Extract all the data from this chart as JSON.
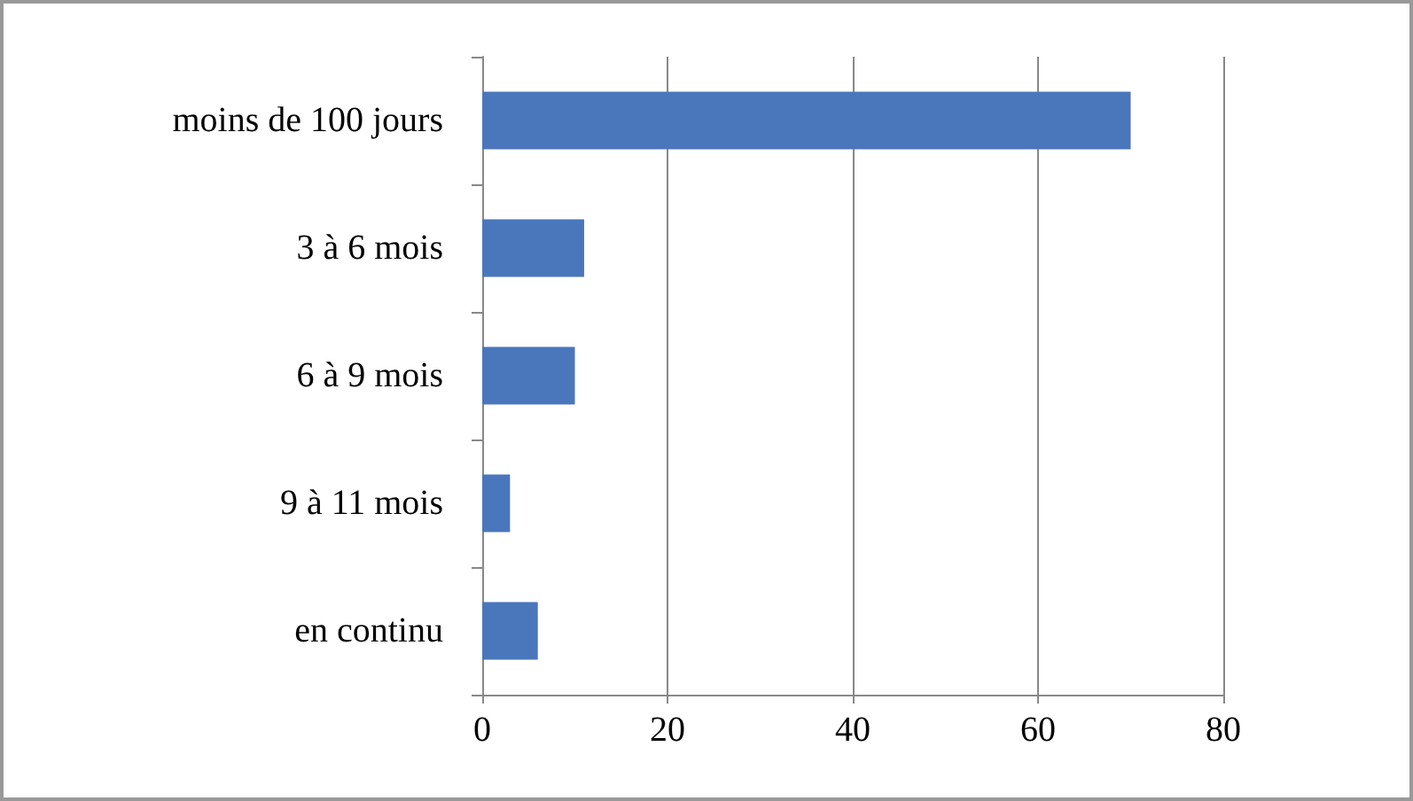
{
  "chart_data": {
    "type": "bar",
    "orientation": "horizontal",
    "categories": [
      "moins de 100 jours",
      "3 à 6 mois",
      "6 à 9 mois",
      "9 à 11 mois",
      "en continu"
    ],
    "values": [
      70,
      11,
      10,
      3,
      6
    ],
    "color": "#4a76bb",
    "xlim": [
      0,
      80
    ],
    "xticks": [
      0,
      20,
      40,
      60,
      80
    ],
    "grid": "x"
  }
}
